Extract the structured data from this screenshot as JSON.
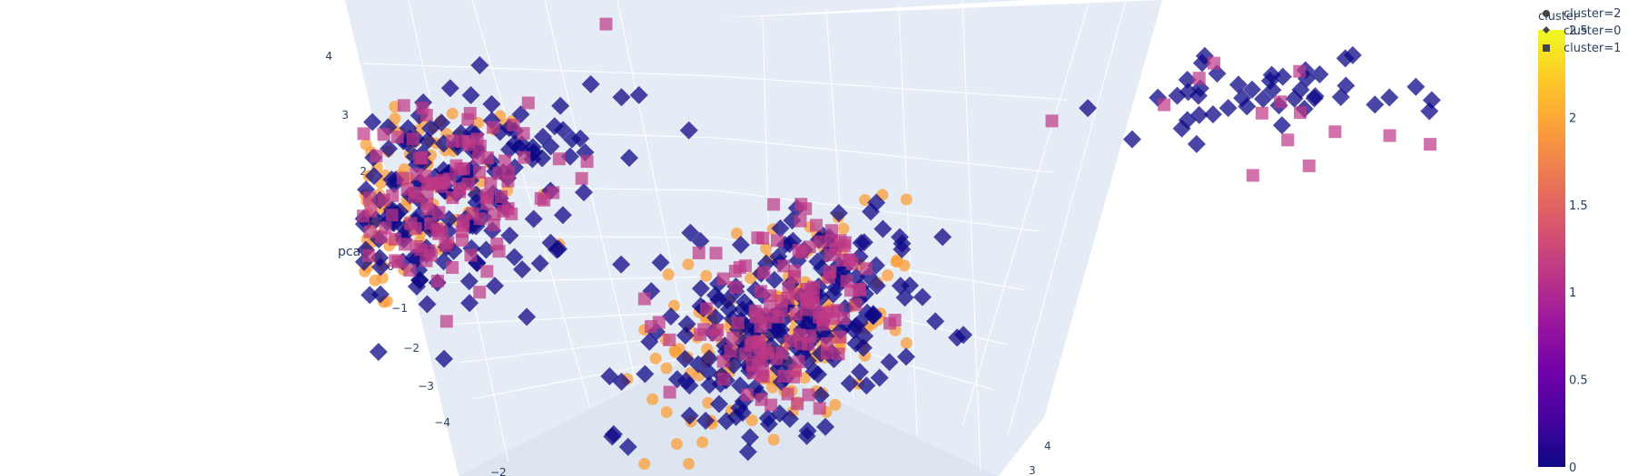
{
  "colors": {
    "background": "#ffffff",
    "scene_bg": "#e5ecf6",
    "grid": "#ffffff",
    "text": "#2a3f5f",
    "colorscale": [
      "#0d0887",
      "#46039f",
      "#7201a8",
      "#9c179e",
      "#bd3786",
      "#d8576b",
      "#ed7953",
      "#fb9f3a",
      "#fdca26",
      "#f0f921"
    ]
  },
  "chart_data": {
    "type": "scatter",
    "mode": "3d",
    "axes": {
      "z": {
        "title": "pca3",
        "ticks": [
          "4",
          "3",
          "2",
          "1",
          "0",
          "−1",
          "−2",
          "−3",
          "−4"
        ]
      },
      "x_visible_ticks": [
        "−2"
      ],
      "y_visible_ticks": [
        "4",
        "3"
      ]
    },
    "legend": {
      "title": "cluster",
      "placement": "top-right",
      "entries": [
        {
          "label": "cluster=2",
          "symbol": "circle",
          "value": 2
        },
        {
          "label": "cluster=0",
          "symbol": "diamond",
          "value": 0
        },
        {
          "label": "cluster=1",
          "symbol": "square",
          "value": 1
        }
      ]
    },
    "colorbar": {
      "range": [
        0,
        2.5
      ],
      "ticks": [
        "0",
        "0.5",
        "1",
        "1.5",
        "2",
        "2.5"
      ]
    },
    "series": [
      {
        "name": "cluster=2",
        "symbol": "circle",
        "color_value": 2,
        "blobs": [
          {
            "cx": -1.35,
            "cz": 0.9,
            "sx": 0.55,
            "sz": 2.2,
            "n": 170
          },
          {
            "cx": 0.35,
            "cz": -1.6,
            "sx": 0.4,
            "sz": 2.2,
            "n": 170
          }
        ]
      },
      {
        "name": "cluster=0",
        "symbol": "diamond",
        "color_value": 0,
        "blobs": [
          {
            "cx": -1.1,
            "cz": 0.9,
            "sx": 0.55,
            "sz": 2.1,
            "n": 210
          },
          {
            "cx": 0.35,
            "cz": -1.5,
            "sx": 0.45,
            "sz": 2.2,
            "n": 210
          },
          {
            "cx": 1.8,
            "cz": 2.9,
            "sx": 0.55,
            "sz": 0.7,
            "n": 45
          }
        ]
      },
      {
        "name": "cluster=1",
        "symbol": "square",
        "color_value": 1,
        "blobs": [
          {
            "cx": -1.1,
            "cz": 1.1,
            "sx": 0.45,
            "sz": 1.9,
            "n": 130
          },
          {
            "cx": 0.35,
            "cz": -1.2,
            "sx": 0.35,
            "sz": 2.0,
            "n": 130
          },
          {
            "cx": 1.9,
            "cz": 2.6,
            "sx": 0.7,
            "sz": 1.3,
            "n": 14
          }
        ]
      }
    ]
  }
}
